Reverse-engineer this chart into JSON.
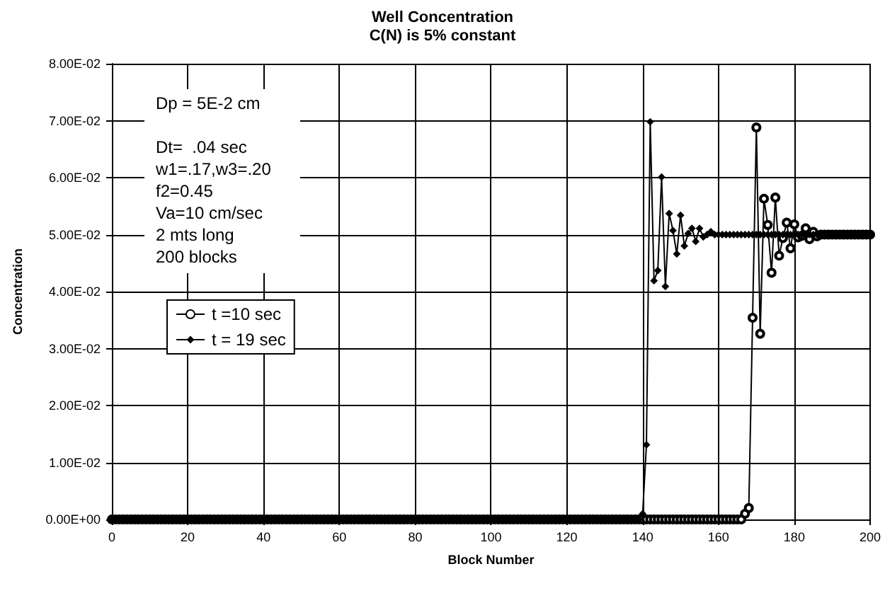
{
  "chart_data": {
    "type": "line",
    "title": "Well Concentration",
    "subtitle": "C(N) is 5% constant",
    "xlabel": "Block Number",
    "ylabel": "Concentration",
    "x": [
      0,
      1,
      2,
      3,
      4,
      5,
      6,
      7,
      8,
      9,
      10,
      11,
      12,
      13,
      14,
      15,
      16,
      17,
      18,
      19,
      20,
      21,
      22,
      23,
      24,
      25,
      26,
      27,
      28,
      29,
      30,
      31,
      32,
      33,
      34,
      35,
      36,
      37,
      38,
      39,
      40,
      41,
      42,
      43,
      44,
      45,
      46,
      47,
      48,
      49,
      50,
      51,
      52,
      53,
      54,
      55,
      56,
      57,
      58,
      59,
      60,
      61,
      62,
      63,
      64,
      65,
      66,
      67,
      68,
      69,
      70,
      71,
      72,
      73,
      74,
      75,
      76,
      77,
      78,
      79,
      80,
      81,
      82,
      83,
      84,
      85,
      86,
      87,
      88,
      89,
      90,
      91,
      92,
      93,
      94,
      95,
      96,
      97,
      98,
      99,
      100,
      101,
      102,
      103,
      104,
      105,
      106,
      107,
      108,
      109,
      110,
      111,
      112,
      113,
      114,
      115,
      116,
      117,
      118,
      119,
      120,
      121,
      122,
      123,
      124,
      125,
      126,
      127,
      128,
      129,
      130,
      131,
      132,
      133,
      134,
      135,
      136,
      137,
      138,
      139,
      140,
      141,
      142,
      143,
      144,
      145,
      146,
      147,
      148,
      149,
      150,
      151,
      152,
      153,
      154,
      155,
      156,
      157,
      158,
      159,
      160,
      161,
      162,
      163,
      164,
      165,
      166,
      167,
      168,
      169,
      170,
      171,
      172,
      173,
      174,
      175,
      176,
      177,
      178,
      179,
      180,
      181,
      182,
      183,
      184,
      185,
      186,
      187,
      188,
      189,
      190,
      191,
      192,
      193,
      194,
      195,
      196,
      197,
      198,
      199,
      200
    ],
    "series": [
      {
        "name": "t =10 sec",
        "color": "#000000",
        "marker": "circle",
        "values": [
          0,
          0,
          0,
          0,
          0,
          0,
          0,
          0,
          0,
          0,
          0,
          0,
          0,
          0,
          0,
          0,
          0,
          0,
          0,
          0,
          0,
          0,
          0,
          0,
          0,
          0,
          0,
          0,
          0,
          0,
          0,
          0,
          0,
          0,
          0,
          0,
          0,
          0,
          0,
          0,
          0,
          0,
          0,
          0,
          0,
          0,
          0,
          0,
          0,
          0,
          0,
          0,
          0,
          0,
          0,
          0,
          0,
          0,
          0,
          0,
          0,
          0,
          0,
          0,
          0,
          0,
          0,
          0,
          0,
          0,
          0,
          0,
          0,
          0,
          0,
          0,
          0,
          0,
          0,
          0,
          0,
          0,
          0,
          0,
          0,
          0,
          0,
          0,
          0,
          0,
          0,
          0,
          0,
          0,
          0,
          0,
          0,
          0,
          0,
          0,
          0,
          0,
          0,
          0,
          0,
          0,
          0,
          0,
          0,
          0,
          0,
          0,
          0,
          0,
          0,
          0,
          0,
          0,
          0,
          0,
          0,
          0,
          0,
          0,
          0,
          0,
          0,
          0,
          0,
          0,
          0,
          0,
          0,
          0,
          0,
          0,
          0,
          0,
          0,
          0,
          0,
          0,
          0,
          0,
          0,
          0,
          0,
          0,
          0,
          0,
          0,
          0,
          0,
          0,
          0,
          0,
          0,
          0,
          0,
          0,
          0,
          0,
          0,
          0,
          0,
          0,
          0,
          0.001,
          0.002,
          0.0354,
          0.0688,
          0.0326,
          0.0563,
          0.0517,
          0.0433,
          0.0565,
          0.0463,
          0.0494,
          0.0521,
          0.0476,
          0.0518,
          0.0495,
          0.0498,
          0.0511,
          0.0492,
          0.0505,
          0.0497,
          0.05,
          0.05,
          0.05,
          0.05,
          0.05,
          0.05,
          0.05,
          0.05,
          0.05,
          0.05,
          0.05,
          0.05,
          0.05,
          0.05
        ]
      },
      {
        "name": "t = 19 sec",
        "color": "#000000",
        "marker": "diamond",
        "values": [
          0,
          0,
          0,
          0,
          0,
          0,
          0,
          0,
          0,
          0,
          0,
          0,
          0,
          0,
          0,
          0,
          0,
          0,
          0,
          0,
          0,
          0,
          0,
          0,
          0,
          0,
          0,
          0,
          0,
          0,
          0,
          0,
          0,
          0,
          0,
          0,
          0,
          0,
          0,
          0,
          0,
          0,
          0,
          0,
          0,
          0,
          0,
          0,
          0,
          0,
          0,
          0,
          0,
          0,
          0,
          0,
          0,
          0,
          0,
          0,
          0,
          0,
          0,
          0,
          0,
          0,
          0,
          0,
          0,
          0,
          0,
          0,
          0,
          0,
          0,
          0,
          0,
          0,
          0,
          0,
          0,
          0,
          0,
          0,
          0,
          0,
          0,
          0,
          0,
          0,
          0,
          0,
          0,
          0,
          0,
          0,
          0,
          0,
          0,
          0,
          0,
          0,
          0,
          0,
          0,
          0,
          0,
          0,
          0,
          0,
          0,
          0,
          0,
          0,
          0,
          0,
          0,
          0,
          0,
          0,
          0,
          0,
          0,
          0,
          0,
          0,
          0,
          0,
          0,
          0,
          0,
          0,
          0,
          0,
          0,
          0,
          0,
          0,
          0,
          0,
          0.001,
          0.0131,
          0.0698,
          0.0419,
          0.0437,
          0.0601,
          0.0409,
          0.0537,
          0.0507,
          0.0466,
          0.0534,
          0.048,
          0.0502,
          0.0511,
          0.0488,
          0.0511,
          0.0496,
          0.05,
          0.0505,
          0.05,
          0.05,
          0.05,
          0.05,
          0.05,
          0.05,
          0.05,
          0.05,
          0.05,
          0.05,
          0.05,
          0.05,
          0.05,
          0.05,
          0.05,
          0.05,
          0.05,
          0.05,
          0.05,
          0.05,
          0.05,
          0.05,
          0.05,
          0.05,
          0.05,
          0.05,
          0.05,
          0.05,
          0.05,
          0.05,
          0.05,
          0.05,
          0.05,
          0.05,
          0.05,
          0.05,
          0.05,
          0.05,
          0.05,
          0.05,
          0.05,
          0.05
        ]
      }
    ],
    "xlim": [
      0,
      200
    ],
    "xticks": [
      0,
      20,
      40,
      60,
      80,
      100,
      120,
      140,
      160,
      180,
      200
    ],
    "ylim": [
      0,
      0.08
    ],
    "yticks": [
      {
        "value": 0,
        "label": "0.00E+00"
      },
      {
        "value": 0.01,
        "label": "1.00E-02"
      },
      {
        "value": 0.02,
        "label": "2.00E-02"
      },
      {
        "value": 0.03,
        "label": "3.00E-02"
      },
      {
        "value": 0.04,
        "label": "4.00E-02"
      },
      {
        "value": 0.05,
        "label": "5.00E-02"
      },
      {
        "value": 0.06,
        "label": "6.00E-02"
      },
      {
        "value": 0.07,
        "label": "7.00E-02"
      },
      {
        "value": 0.08,
        "label": "8.00E-02"
      }
    ],
    "annotations": [
      "Dp = 5E-2 cm",
      "Dt=  .04 sec",
      "w1=.17,w3=.20",
      "f2=0.45",
      "Va=10 cm/sec",
      "2 mts long",
      "200 blocks"
    ],
    "grid": true,
    "legend": "left",
    "line_style": "solid"
  }
}
